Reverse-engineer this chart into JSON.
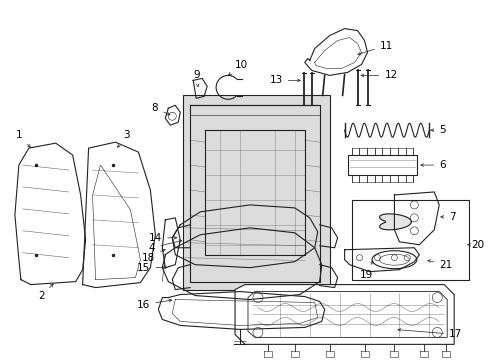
{
  "bg_color": "#ffffff",
  "line_color": "#222222",
  "label_color": "#000000",
  "fig_width": 4.89,
  "fig_height": 3.6,
  "dpi": 100,
  "font_size": 7.5
}
